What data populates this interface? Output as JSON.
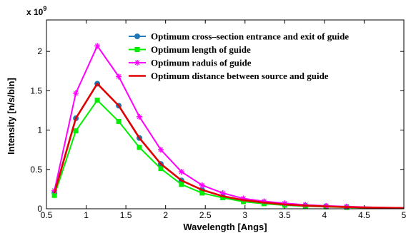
{
  "chart_data": {
    "type": "line",
    "title": "",
    "xlabel": "Wavelength [Angs]",
    "ylabel": "Intensity [n/s/bin]",
    "y_multiplier_label": "x 10",
    "y_multiplier_exponent": "9",
    "xlim": [
      0.5,
      5
    ],
    "ylim": [
      0,
      2.4
    ],
    "xticks": [
      "0.5",
      "1",
      "1.5",
      "2",
      "2.5",
      "3",
      "3.5",
      "4",
      "4.5",
      "5"
    ],
    "yticks": [
      "0",
      "0.5",
      "1",
      "1.5",
      "2"
    ],
    "legend_position": "top-right",
    "x": [
      0.6,
      0.87,
      1.14,
      1.41,
      1.67,
      1.94,
      2.2,
      2.46,
      2.72,
      2.98,
      3.24,
      3.5,
      3.76,
      4.02,
      4.28,
      4.54,
      4.8,
      5.0
    ],
    "series": [
      {
        "name": "Optimum cross–section entrance and exit of guide",
        "color": "#1f77b4",
        "marker": "circle",
        "values": [
          0.2,
          1.15,
          1.59,
          1.31,
          0.9,
          0.57,
          0.36,
          0.24,
          0.16,
          0.11,
          0.08,
          0.055,
          0.04,
          0.03,
          0.022,
          0.016,
          0.012,
          0.01
        ]
      },
      {
        "name": "Optimum length of guide",
        "color": "#00ee00",
        "marker": "square",
        "values": [
          0.17,
          0.99,
          1.38,
          1.11,
          0.78,
          0.51,
          0.31,
          0.2,
          0.14,
          0.09,
          0.065,
          0.045,
          0.033,
          0.025,
          0.018,
          0.013,
          0.01,
          0.008
        ]
      },
      {
        "name": "Optimum raduis of guide",
        "color": "#ff00ff",
        "marker": "plus",
        "values": [
          0.23,
          1.47,
          2.07,
          1.68,
          1.17,
          0.75,
          0.47,
          0.3,
          0.2,
          0.13,
          0.095,
          0.07,
          0.05,
          0.037,
          0.028,
          0.02,
          0.015,
          0.012
        ]
      },
      {
        "name": "Optimum distance between source and guide",
        "color": "#e00000",
        "marker": "none",
        "values": [
          0.2,
          1.15,
          1.59,
          1.31,
          0.9,
          0.57,
          0.36,
          0.24,
          0.16,
          0.11,
          0.08,
          0.055,
          0.04,
          0.03,
          0.022,
          0.016,
          0.012,
          0.01
        ]
      }
    ]
  }
}
